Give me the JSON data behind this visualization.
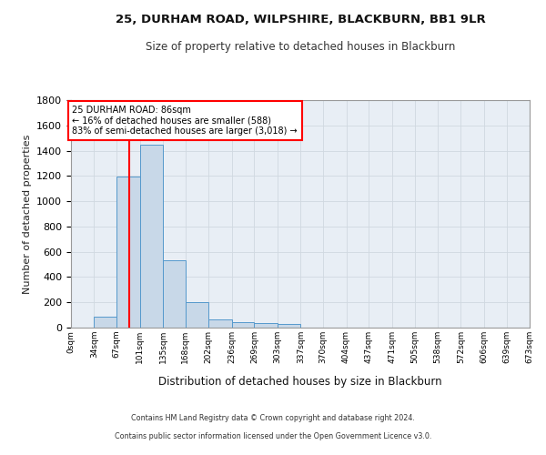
{
  "title_line1": "25, DURHAM ROAD, WILPSHIRE, BLACKBURN, BB1 9LR",
  "title_line2": "Size of property relative to detached houses in Blackburn",
  "xlabel": "Distribution of detached houses by size in Blackburn",
  "ylabel": "Number of detached properties",
  "bar_color": "#c8d8e8",
  "bar_edge_color": "#5599cc",
  "grid_color": "#d0d8e0",
  "bg_color": "#e8eef5",
  "red_line_x": 86,
  "annotation_title": "25 DURHAM ROAD: 86sqm",
  "annotation_line2": "← 16% of detached houses are smaller (588)",
  "annotation_line3": "83% of semi-detached houses are larger (3,018) →",
  "footer_line1": "Contains HM Land Registry data © Crown copyright and database right 2024.",
  "footer_line2": "Contains public sector information licensed under the Open Government Licence v3.0.",
  "bins": [
    0,
    34,
    67,
    101,
    135,
    168,
    202,
    236,
    269,
    303,
    337,
    370,
    404,
    437,
    471,
    505,
    538,
    572,
    606,
    639,
    673
  ],
  "counts": [
    0,
    90,
    1195,
    1450,
    530,
    205,
    65,
    45,
    35,
    30,
    0,
    0,
    0,
    0,
    0,
    0,
    0,
    0,
    0,
    0
  ],
  "ylim": [
    0,
    1800
  ],
  "yticks": [
    0,
    200,
    400,
    600,
    800,
    1000,
    1200,
    1400,
    1600,
    1800
  ]
}
